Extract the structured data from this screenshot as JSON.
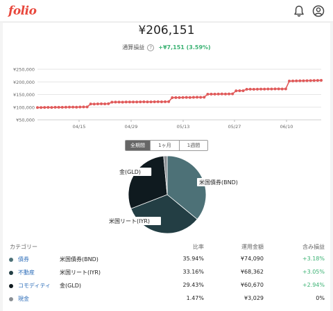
{
  "header": {
    "logo": "folio",
    "icons": [
      "bell-icon",
      "user-icon"
    ]
  },
  "summary": {
    "total": "¥206,151",
    "gain_label": "通算損益",
    "help": "?",
    "gain_value": "+¥7,151 (3.59%)"
  },
  "chart_data": {
    "type": "line",
    "title": "",
    "xlabel": "",
    "ylabel": "",
    "ylim": [
      50000,
      250000
    ],
    "y_ticks": [
      "¥250,000",
      "¥200,000",
      "¥150,000",
      "¥100,000",
      "¥50,000"
    ],
    "x_ticks": [
      "04/15",
      "04/29",
      "05/13",
      "05/27",
      "06/10"
    ],
    "color": "#e05a5a",
    "series": [
      {
        "values": [
          98500,
          98800,
          99100,
          99300,
          99000,
          99500,
          99800,
          99600,
          100000,
          100200,
          100400,
          100100,
          100600,
          100900,
          101100,
          112800,
          112500,
          113000,
          113300,
          113100,
          113600,
          119800,
          120100,
          120300,
          120000,
          120500,
          120700,
          120400,
          120600,
          120900,
          121100,
          120800,
          121000,
          121300,
          121500,
          121200,
          121600,
          121800,
          137800,
          138100,
          137900,
          138400,
          138700,
          138500,
          139000,
          139300,
          139100,
          139400,
          151500,
          151800,
          151600,
          152000,
          152300,
          152100,
          152500,
          152800,
          164600,
          164900,
          165200,
          170800,
          171100,
          170900,
          171400,
          171700,
          171500,
          172000,
          171800,
          172100,
          172300,
          172000,
          172400,
          203300,
          203700,
          204000,
          204300,
          204600,
          204900,
          205200,
          205500,
          205800,
          206151
        ]
      }
    ]
  },
  "tabs": [
    {
      "label": "全期間",
      "active": true
    },
    {
      "label": "1ヶ月",
      "active": false
    },
    {
      "label": "1週間",
      "active": false
    }
  ],
  "pie": {
    "slices": [
      {
        "label": "米国債券(BND)",
        "value": 35.94,
        "color": "#4d7177"
      },
      {
        "label": "米国リート(IYR)",
        "value": 33.16,
        "color": "#233e44"
      },
      {
        "label": "金(GLD)",
        "value": 29.43,
        "color": "#0f1a1f"
      },
      {
        "label": "",
        "value": 1.47,
        "color": "#8a8f94"
      }
    ]
  },
  "table": {
    "headers": {
      "category": "カテゴリー",
      "ratio": "比率",
      "amount": "運用金額",
      "gain": "含み損益"
    },
    "rows": [
      {
        "category": "債券",
        "name": "米国債券(BND)",
        "ratio": "35.94%",
        "amount": "¥74,090",
        "gain": "+3.18%",
        "color": "#4d7177",
        "positive": true
      },
      {
        "category": "不動産",
        "name": "米国リート(IYR)",
        "ratio": "33.16%",
        "amount": "¥68,362",
        "gain": "+3.05%",
        "color": "#233e44",
        "positive": true
      },
      {
        "category": "コモディティ",
        "name": "金(GLD)",
        "ratio": "29.43%",
        "amount": "¥60,670",
        "gain": "+2.94%",
        "color": "#0f1a1f",
        "positive": true
      },
      {
        "category": "現金",
        "name": "",
        "ratio": "1.47%",
        "amount": "¥3,029",
        "gain": "0%",
        "color": "#8a8f94",
        "positive": false
      }
    ]
  }
}
